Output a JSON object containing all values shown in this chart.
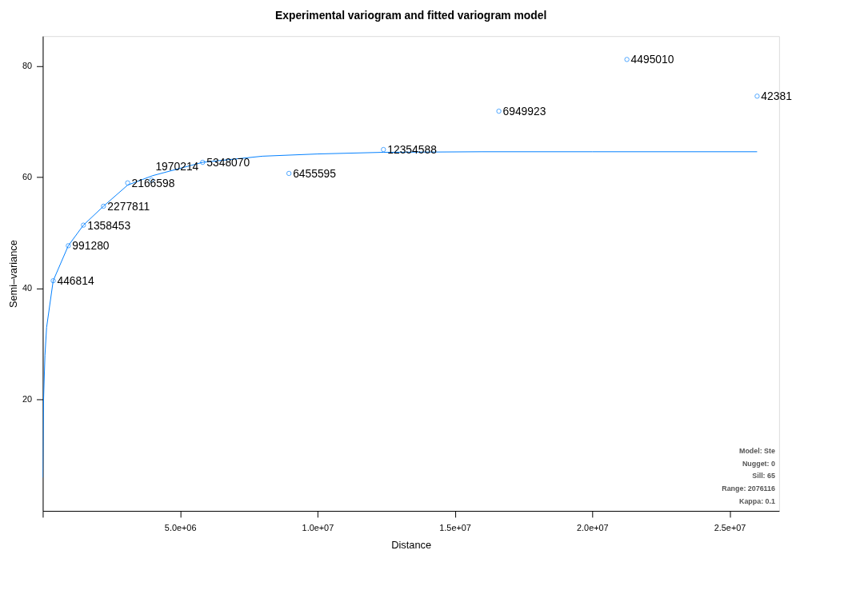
{
  "chart_data": {
    "type": "scatter",
    "title": "Experimental variogram and fitted variogram model",
    "xlabel": "Distance",
    "ylabel": "Semi–variance",
    "xlim": [
      0,
      26800000
    ],
    "xticks": [
      {
        "value": 0,
        "label": null
      },
      {
        "value": 5000000,
        "label": "5.0e+06"
      },
      {
        "value": 10000000,
        "label": "1.0e+07"
      },
      {
        "value": 15000000,
        "label": "1.5e+07"
      },
      {
        "value": 20000000,
        "label": "2.0e+07"
      },
      {
        "value": 25000000,
        "label": "2.5e+07"
      }
    ],
    "ylim": [
      0,
      85.4
    ],
    "yticks": [
      20,
      40,
      60,
      80
    ],
    "grid": false,
    "marker": "circle",
    "series": [
      {
        "color": "#0080ff",
        "x": [
          380000,
          930000,
          1480000,
          2210000,
          3090000,
          3960000,
          5820000,
          8960000,
          12400000,
          16600000,
          21260000,
          26000000
        ],
        "values": [
          41.4,
          47.7,
          51.4,
          54.8,
          59.0,
          59.5,
          62.7,
          60.7,
          65.0,
          71.9,
          81.2,
          74.6
        ]
      },
      {
        "type": "line",
        "color": "#0080ff",
        "line_style": "solid",
        "marker": "none",
        "x": [
          0,
          30000,
          80000,
          140000,
          380000,
          930000,
          1480000,
          2210000,
          3090000,
          4000000,
          5820000,
          8000000,
          10000000,
          12400000,
          16000000,
          20000000,
          26000000
        ],
        "values": [
          6,
          20,
          28,
          33,
          41.4,
          47.7,
          51.4,
          54.8,
          58.6,
          60.3,
          62.7,
          63.8,
          64.2,
          64.5,
          64.6,
          64.6,
          64.6
        ]
      }
    ],
    "annotations": [
      {
        "text": "446814",
        "x": 380000,
        "y": 41.4
      },
      {
        "text": "991280",
        "x": 930000,
        "y": 47.7
      },
      {
        "text": "1358453",
        "x": 1480000,
        "y": 51.4
      },
      {
        "text": "2277811",
        "x": 2210000,
        "y": 54.8
      },
      {
        "text": "2166598",
        "x": 3090000,
        "y": 59.0
      },
      {
        "text": "1970214",
        "x": 3960000,
        "y": 59.5
      },
      {
        "text": "5348070",
        "x": 5820000,
        "y": 62.7
      },
      {
        "text": "6455595",
        "x": 8960000,
        "y": 60.7
      },
      {
        "text": "12354588",
        "x": 12400000,
        "y": 65.0
      },
      {
        "text": "6949923",
        "x": 16600000,
        "y": 71.9
      },
      {
        "text": "4495010",
        "x": 21260000,
        "y": 81.2
      },
      {
        "text": "42381",
        "x": 26000000,
        "y": 74.6
      },
      "Model: Ste",
      "Nugget: 0",
      "Sill: 65",
      "Range: 2076116",
      "Kappa: 0.1"
    ]
  }
}
